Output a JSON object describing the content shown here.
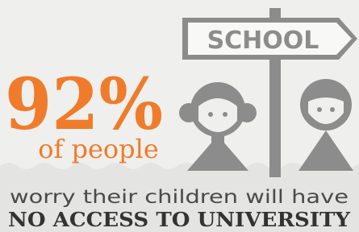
{
  "stat": {
    "value": "92%",
    "caption": "of people"
  },
  "sign": {
    "label": "SCHOOL"
  },
  "message": {
    "line1": "worry their children will have",
    "line2": "NO ACCESS TO UNIVERSITY"
  }
}
